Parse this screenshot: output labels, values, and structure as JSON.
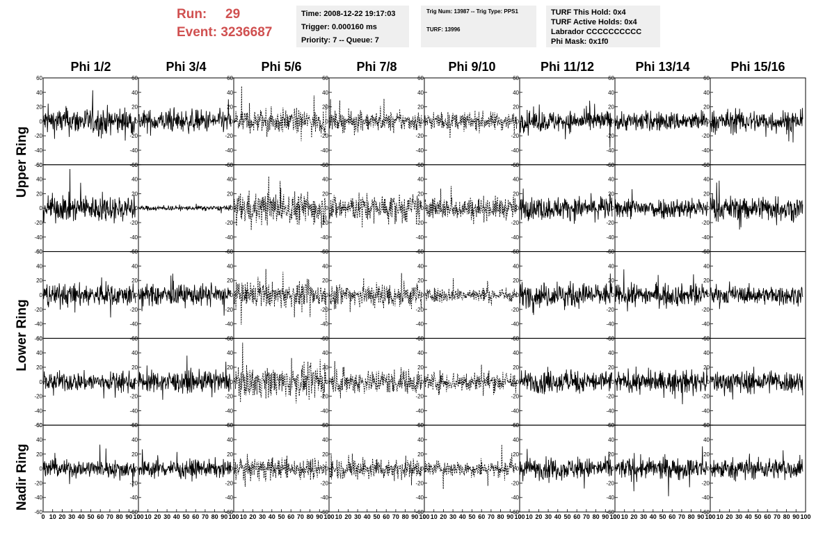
{
  "header": {
    "run_label": "Run:",
    "run_value": "29",
    "event_label": "Event:",
    "event_value": "3236687",
    "time": "Time: 2008-12-22 19:17:03",
    "trigger": "Trigger: 0.000160 ms",
    "priority": "Priority: 7 -- Queue: 7",
    "trig_num": "Trig Num: 13987 -- Trig Type: PPS1",
    "turf": "TURF: 13996",
    "turf_hold": "TURF This Hold: 0x4",
    "turf_active": "TURF Active Holds: 0x4",
    "labrador": "Labrador CCCCCCCCCC",
    "phi_mask": "Phi Mask: 0x1f0"
  },
  "colors": {
    "run_text": "#d05050",
    "info_bg": "#efefef",
    "trace": "#000000"
  },
  "chart_data": {
    "type": "line",
    "columns": [
      "Phi 1/2",
      "Phi 3/4",
      "Phi 5/6",
      "Phi 7/8",
      "Phi 9/10",
      "Phi 11/12",
      "Phi 13/14",
      "Phi 15/16"
    ],
    "ring_labels": [
      "Upper Ring",
      "Lower Ring",
      "Nadir Ring"
    ],
    "rows": 5,
    "xlim": [
      0,
      100
    ],
    "ylim": [
      -60,
      60
    ],
    "xticks": [
      0,
      10,
      20,
      30,
      40,
      50,
      60,
      70,
      80,
      90,
      100
    ],
    "yticks": [
      -60,
      -40,
      -20,
      0,
      20,
      40,
      60
    ],
    "samples_per_trace": 260,
    "dashed_columns": [
      2,
      3,
      4
    ],
    "trace_amplitude": [
      [
        17,
        14,
        15,
        12,
        11,
        13,
        12,
        14
      ],
      [
        16,
        3,
        20,
        17,
        14,
        14,
        13,
        15
      ],
      [
        14,
        13,
        15,
        16,
        9,
        15,
        13,
        11
      ],
      [
        12,
        13,
        19,
        15,
        13,
        14,
        13,
        14
      ],
      [
        11,
        11,
        13,
        13,
        10,
        13,
        13,
        13
      ]
    ]
  }
}
